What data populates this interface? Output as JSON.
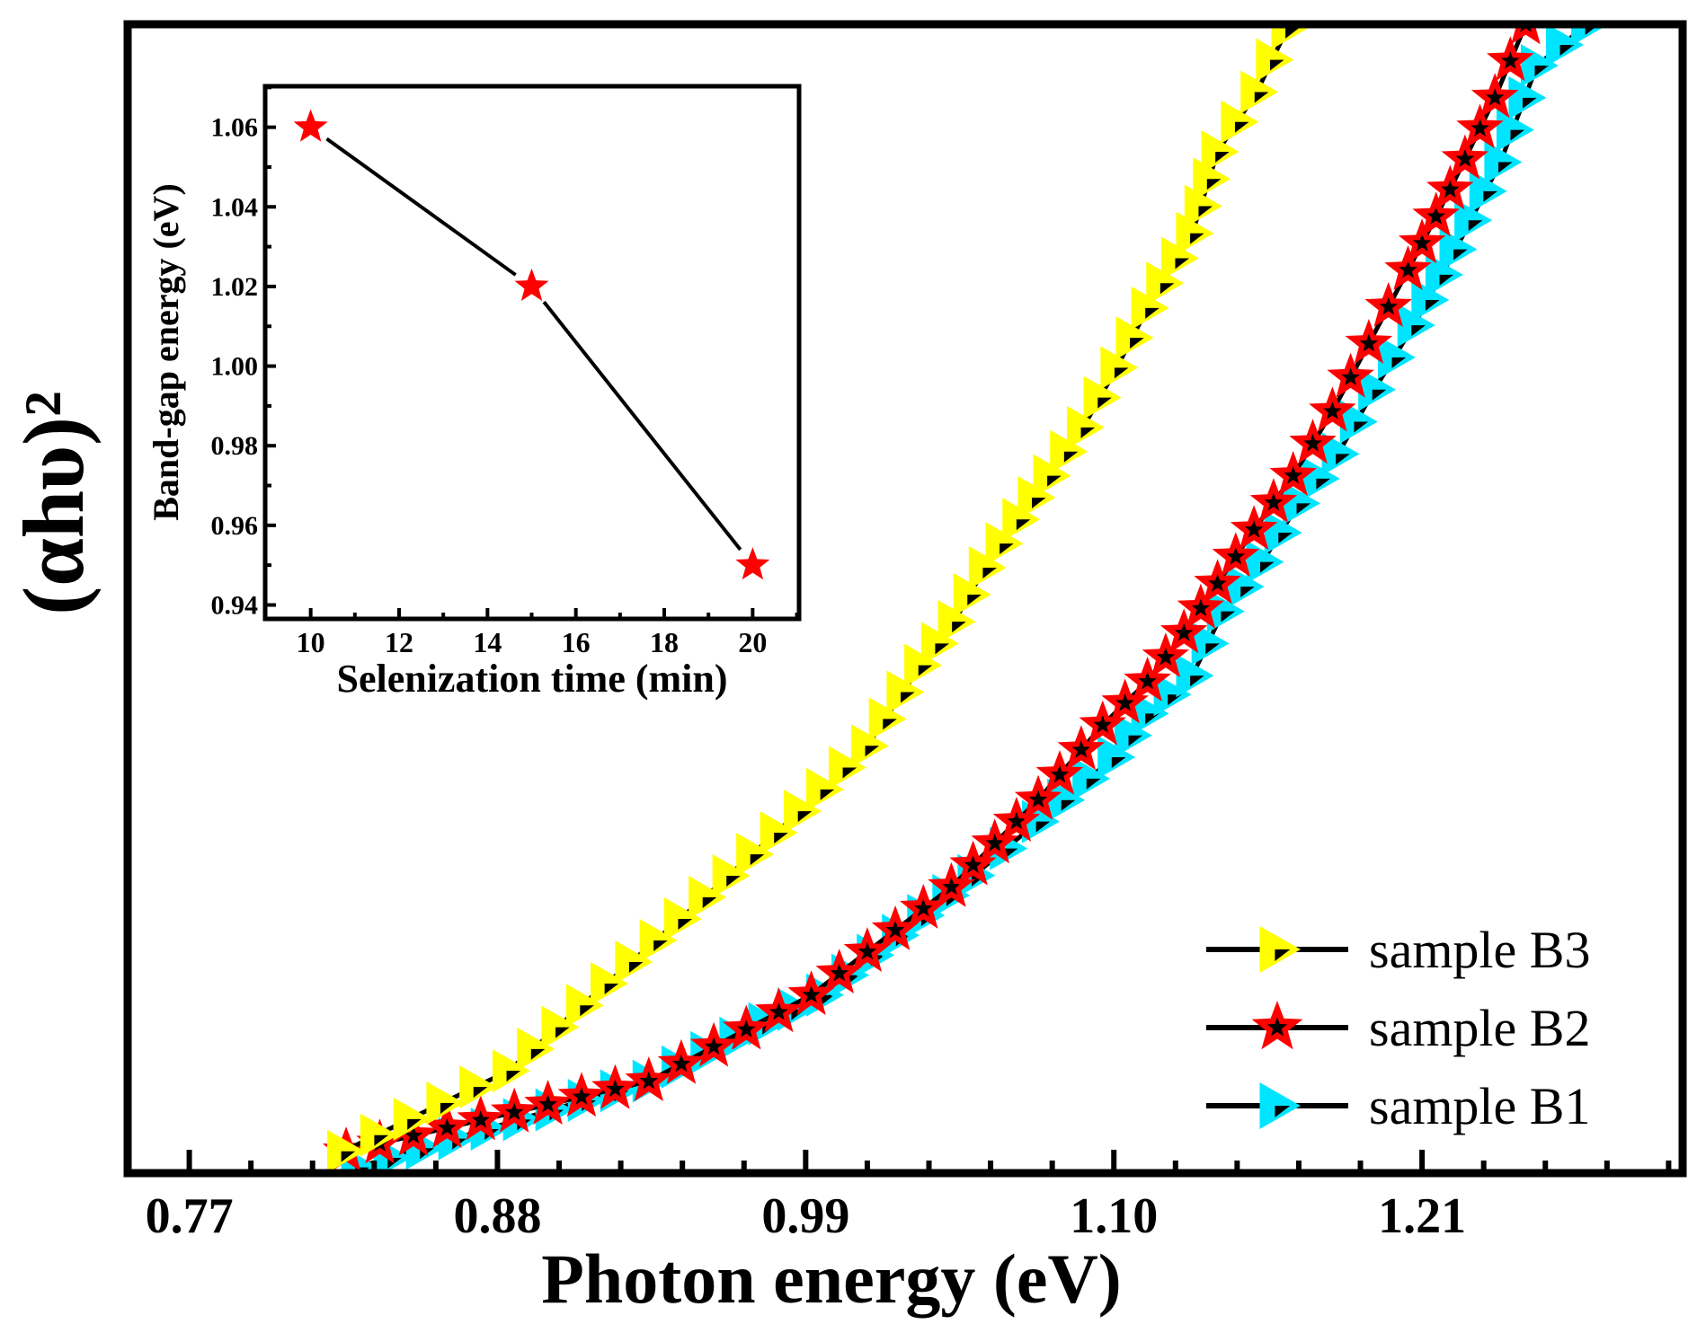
{
  "chart_data": [
    {
      "type": "line",
      "role": "main",
      "xlabel": "Photon energy (eV)",
      "ylabel": "(αhυ)²",
      "xlim": [
        0.748,
        1.303
      ],
      "ylim": [
        0,
        100
      ],
      "y_units": "arbitrary (no tick labels shown)",
      "xticks": [
        0.77,
        0.88,
        0.99,
        1.1,
        1.21
      ],
      "xtick_labels": [
        "0.77",
        "0.88",
        "0.99",
        "1.10",
        "1.21"
      ],
      "grid": false,
      "legend_position": "bottom-right",
      "series": [
        {
          "name": "sample B3",
          "color": "#ffff00",
          "marker": "right-triangle",
          "x": [
            0.825,
            0.884,
            0.919,
            0.954,
            0.988,
            1.012,
            1.031,
            1.043,
            1.054,
            1.066,
            1.077,
            1.089,
            1.101,
            1.112,
            1.128,
            1.137,
            1.151,
            1.162
          ],
          "y": [
            1.9,
            8.9,
            16.5,
            24.0,
            31.5,
            37.2,
            44.2,
            48.0,
            52.7,
            56.9,
            60.7,
            64.9,
            70.1,
            75.3,
            81.8,
            88.9,
            94.1,
            99.7
          ]
        },
        {
          "name": "sample B2",
          "color": "#ff0000",
          "marker": "star",
          "x": [
            0.826,
            0.934,
            0.992,
            1.042,
            1.073,
            1.096,
            1.112,
            1.125,
            1.137,
            1.15,
            1.164,
            1.178,
            1.191,
            1.205,
            1.22,
            1.236,
            1.247
          ],
          "y": [
            1.9,
            8.0,
            15.5,
            24.9,
            32.5,
            39.0,
            42.8,
            47.0,
            51.3,
            56.0,
            60.7,
            66.3,
            72.2,
            78.6,
            85.6,
            93.6,
            100
          ]
        },
        {
          "name": "sample B1",
          "color": "#00e5ff",
          "marker": "right-triangle",
          "x": [
            0.83,
            0.934,
            0.996,
            1.05,
            1.073,
            1.1,
            1.112,
            1.128,
            1.139,
            1.153,
            1.166,
            1.18,
            1.193,
            1.207,
            1.222,
            1.238,
            1.251,
            1.269
          ],
          "y": [
            0.5,
            8.0,
            15.5,
            25.9,
            30.6,
            36.2,
            40.0,
            43.3,
            48.9,
            53.2,
            58.3,
            62.6,
            68.2,
            73.8,
            80.4,
            88.0,
            96.4,
            100
          ]
        }
      ]
    },
    {
      "type": "line",
      "role": "inset",
      "xlabel": "Selenization time (min)",
      "ylabel": "Band-gap energy (eV)",
      "xlim": [
        8.97,
        21.05
      ],
      "ylim": [
        0.9365,
        1.0703
      ],
      "xticks": [
        10,
        12,
        14,
        16,
        18,
        20
      ],
      "xtick_labels": [
        "10",
        "12",
        "14",
        "16",
        "18",
        "20"
      ],
      "yticks": [
        0.94,
        0.96,
        0.98,
        1.0,
        1.02,
        1.04,
        1.06
      ],
      "ytick_labels": [
        "0.94",
        "0.96",
        "0.98",
        "1.00",
        "1.02",
        "1.04",
        "1.06"
      ],
      "series": [
        {
          "name": "band-gap",
          "color": "#ff0000",
          "marker": "star",
          "x": [
            10,
            15,
            20
          ],
          "y": [
            1.06,
            1.02,
            0.95
          ]
        }
      ]
    }
  ]
}
